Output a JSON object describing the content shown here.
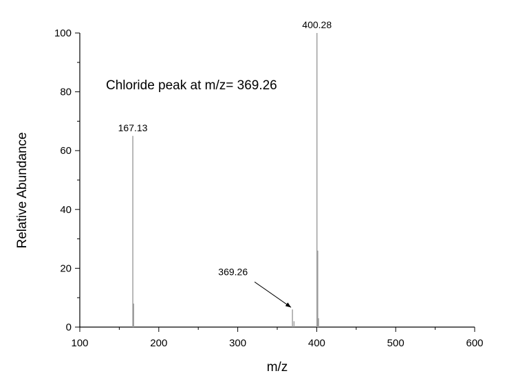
{
  "chart_data": {
    "type": "stem",
    "x_label": "m/z",
    "y_label": "Relative Abundance",
    "annotation": "Chloride peak at m/z= 369.26",
    "x": [
      167.13,
      168.13,
      369.26,
      371.26,
      400.28,
      401.28,
      402.28
    ],
    "values": [
      65,
      8,
      6,
      2,
      100,
      26,
      3
    ],
    "x_labels": [
      "167.13",
      null,
      "369.26",
      null,
      "400.28",
      null,
      null
    ],
    "color": "#9a9a9a",
    "xlim": [
      100,
      600
    ],
    "xticks": [
      100,
      200,
      300,
      400,
      500,
      600
    ],
    "ylim": [
      0,
      100
    ],
    "yticks": [
      0,
      20,
      40,
      60,
      80,
      100
    ],
    "grid": false
  }
}
